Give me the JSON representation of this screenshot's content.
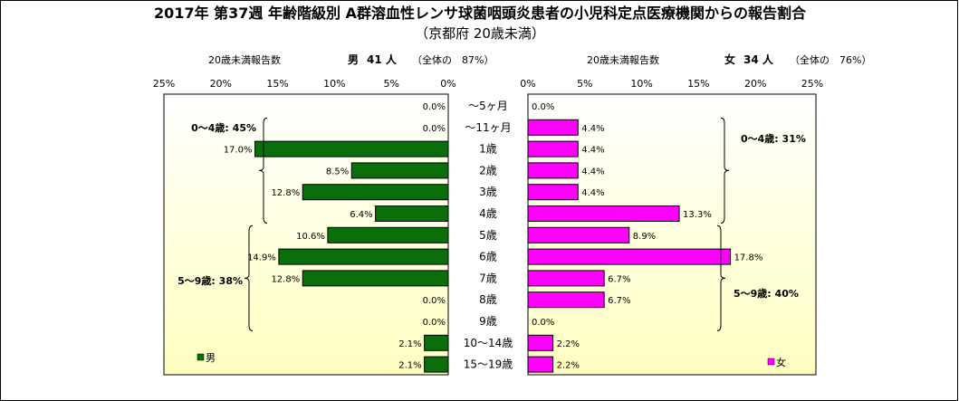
{
  "title": "2017年 第37週 年齢階級別 A群溶血性レンサ球菌咽頭炎患者の小児科定点医療機関からの報告割合",
  "subtitle": "（京都府 20歳未満）",
  "left_header": {
    "label": "20歳未満報告数",
    "gender": "男",
    "count": "41 人",
    "ratio": "（全体の　87%）"
  },
  "right_header": {
    "label": "20歳未満報告数",
    "gender": "女",
    "count": "34 人",
    "ratio": "（全体の　76%）"
  },
  "colors": {
    "male": "#0a6e0a",
    "female": "#ff00ff",
    "background_top": "#ffffff",
    "background_bottom": "#ffffc0"
  },
  "chart_data": {
    "type": "bar",
    "orientation": "horizontal-butterfly",
    "categories": [
      "〜5ヶ月",
      "〜11ヶ月",
      "1歳",
      "2歳",
      "3歳",
      "4歳",
      "5歳",
      "6歳",
      "7歳",
      "8歳",
      "9歳",
      "10〜14歳",
      "15〜19歳"
    ],
    "series": [
      {
        "name": "男",
        "values": [
          0.0,
          0.0,
          17.0,
          8.5,
          12.8,
          6.4,
          10.6,
          14.9,
          12.8,
          0.0,
          0.0,
          2.1,
          2.1
        ],
        "labels": [
          "0.0%",
          "0.0%",
          "17.0%",
          "8.5%",
          "12.8%",
          "6.4%",
          "10.6%",
          "14.9%",
          "12.8%",
          "0.0%",
          "0.0%",
          "2.1%",
          "2.1%"
        ]
      },
      {
        "name": "女",
        "values": [
          0.0,
          4.4,
          4.4,
          4.4,
          4.4,
          13.3,
          8.9,
          17.8,
          6.7,
          6.7,
          0.0,
          2.2,
          2.2
        ],
        "labels": [
          "0.0%",
          "4.4%",
          "4.4%",
          "4.4%",
          "4.4%",
          "13.3%",
          "8.9%",
          "17.8%",
          "6.7%",
          "6.7%",
          "0.0%",
          "2.2%",
          "2.2%"
        ]
      }
    ],
    "xlim": [
      0,
      25
    ],
    "tick_labels": [
      "25%",
      "20%",
      "15%",
      "10%",
      "5%",
      "0%"
    ],
    "right_tick_labels": [
      "0%",
      "5%",
      "10%",
      "15%",
      "20%",
      "25%"
    ],
    "group_annotations": {
      "male": [
        {
          "text": "0〜4歳: 45%",
          "from": 1,
          "to": 5
        },
        {
          "text": "5〜9歳: 38%",
          "from": 6,
          "to": 10
        }
      ],
      "female": [
        {
          "text": "0〜4歳: 31%",
          "from": 1,
          "to": 5
        },
        {
          "text": "5〜9歳: 40%",
          "from": 6,
          "to": 10
        }
      ]
    },
    "legend": [
      {
        "name": "男",
        "position": "bottom-left"
      },
      {
        "name": "女",
        "position": "bottom-right"
      }
    ],
    "grid": false
  }
}
